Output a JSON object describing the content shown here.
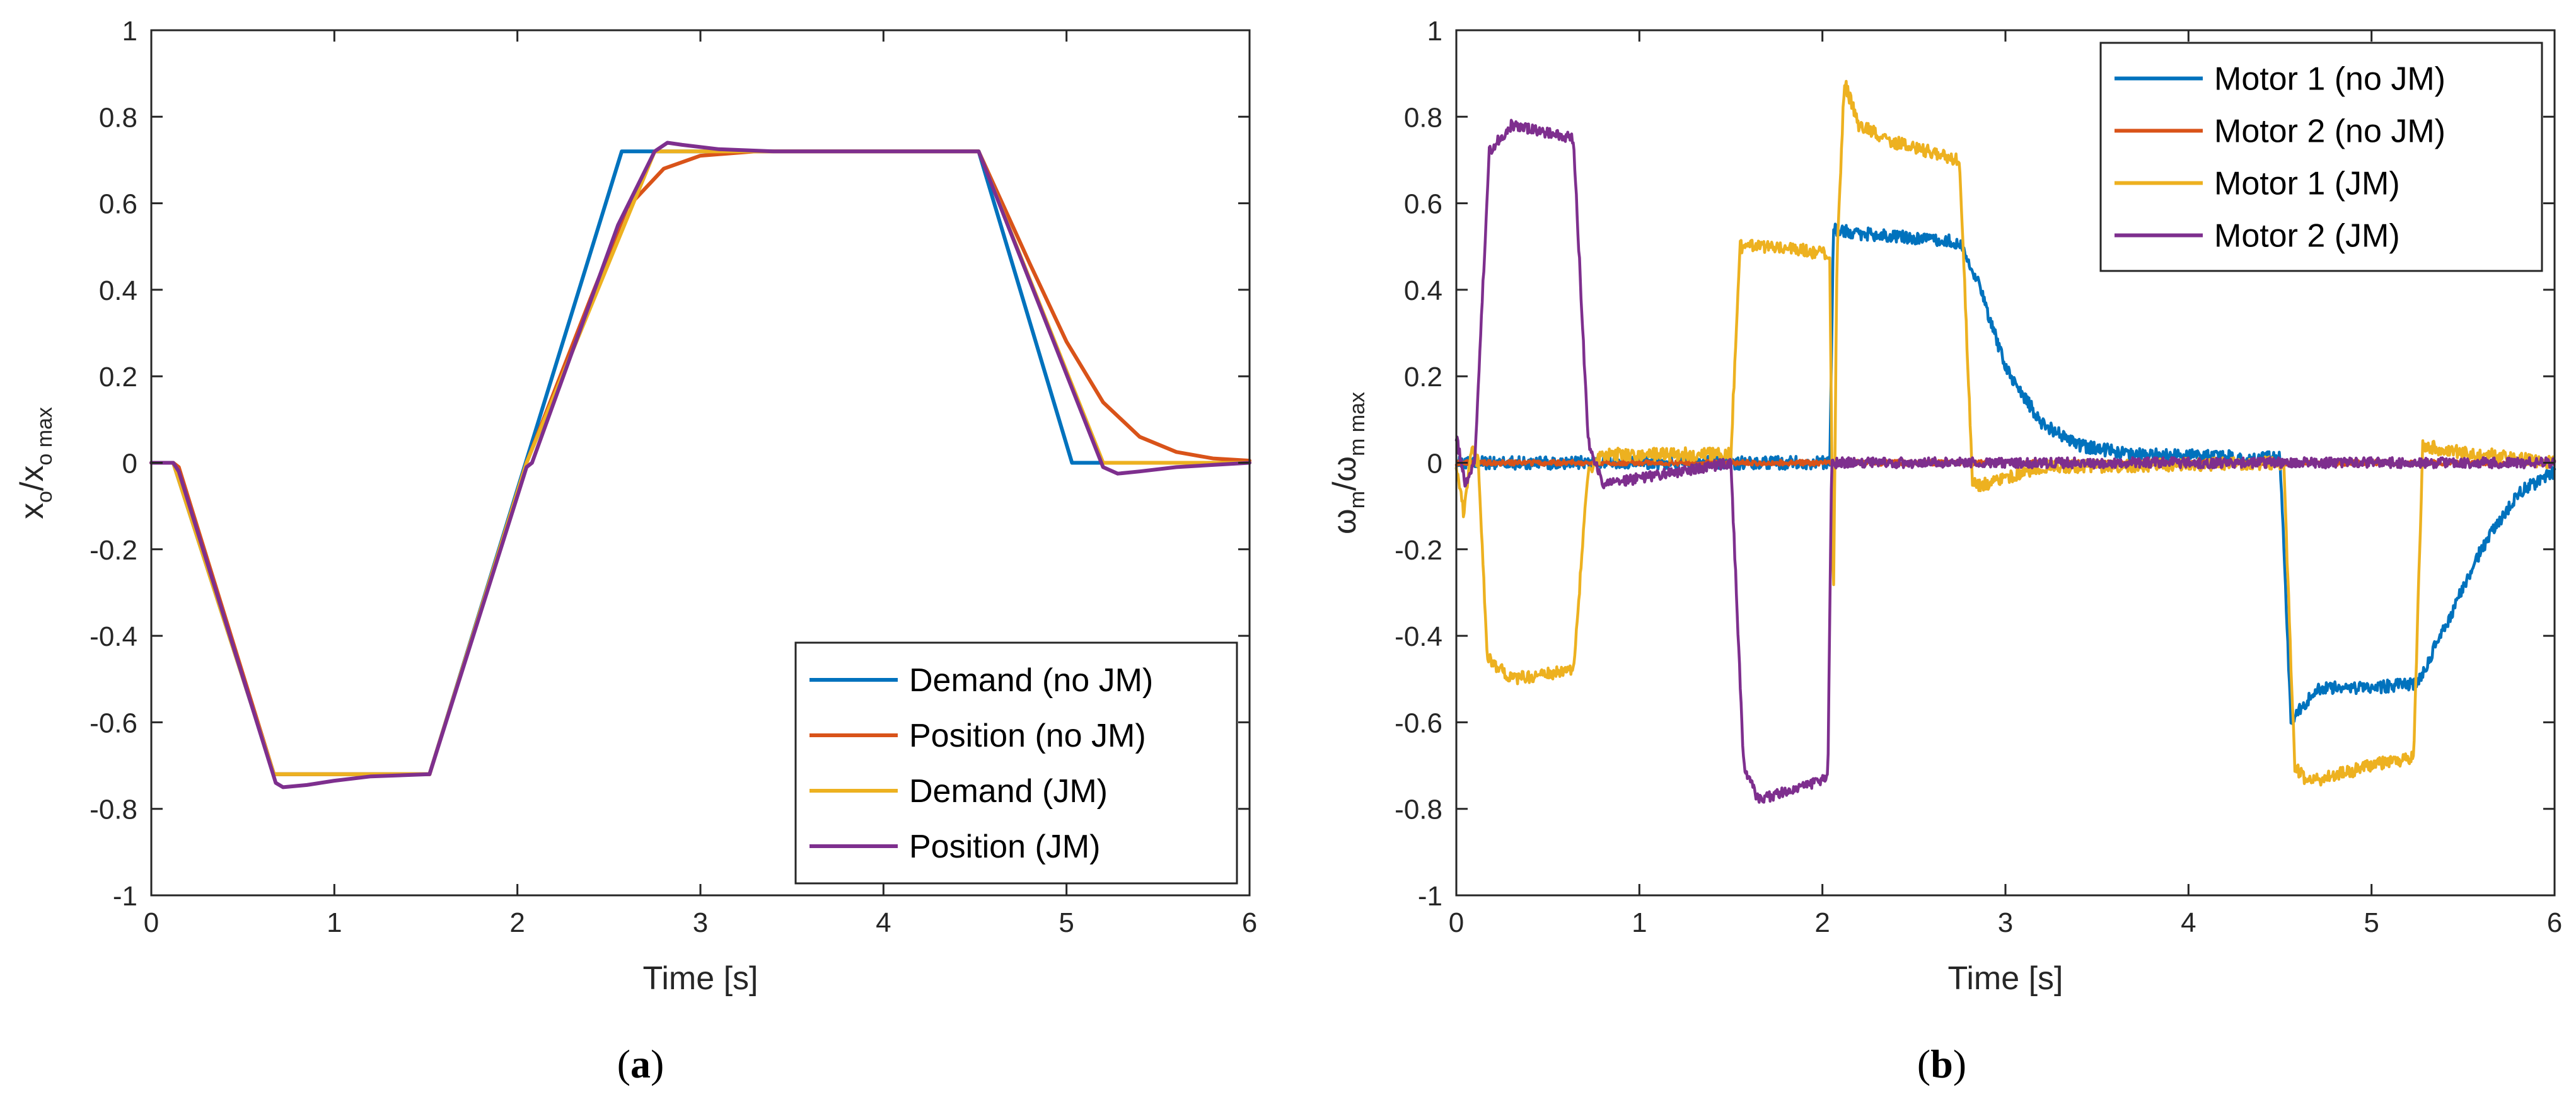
{
  "chart_data": [
    {
      "type": "line",
      "panel_label": "a",
      "title": "",
      "xlabel": "Time [s]",
      "ylabel_main": "x",
      "ylabel_sub1": "o",
      "ylabel_mid": "/x",
      "ylabel_sub2": "o max",
      "xlim": [
        0,
        6
      ],
      "ylim": [
        -1,
        1
      ],
      "xticks": [
        "0",
        "1",
        "2",
        "3",
        "4",
        "5",
        "6"
      ],
      "yticks": [
        "1",
        "0.8",
        "0.6",
        "0.4",
        "0.2",
        "0",
        "-0.2",
        "-0.4",
        "-0.6",
        "-0.8",
        "-1"
      ],
      "legend_position": "bottom-right",
      "series": [
        {
          "name": "Demand (no JM)",
          "color": "#0072BD",
          "points": [
            [
              0,
              0
            ],
            [
              0.12,
              0
            ],
            [
              0.67,
              -0.72
            ],
            [
              1.52,
              -0.72
            ],
            [
              2.57,
              0.72
            ],
            [
              4.52,
              0.72
            ],
            [
              5.03,
              0
            ],
            [
              6,
              0
            ]
          ]
        },
        {
          "name": "Position (no JM)",
          "color": "#D95319",
          "points": [
            [
              0,
              0
            ],
            [
              0.12,
              0
            ],
            [
              0.15,
              -0.01
            ],
            [
              0.67,
              -0.72
            ],
            [
              1.52,
              -0.72
            ],
            [
              2.05,
              0
            ],
            [
              2.4,
              0.38
            ],
            [
              2.6,
              0.59
            ],
            [
              2.8,
              0.68
            ],
            [
              3.0,
              0.71
            ],
            [
              3.3,
              0.72
            ],
            [
              4.52,
              0.72
            ],
            [
              4.8,
              0.46
            ],
            [
              5.0,
              0.28
            ],
            [
              5.2,
              0.14
            ],
            [
              5.4,
              0.06
            ],
            [
              5.6,
              0.025
            ],
            [
              5.8,
              0.01
            ],
            [
              6,
              0.005
            ]
          ]
        },
        {
          "name": "Demand (JM)",
          "color": "#EDB120",
          "points": [
            [
              0,
              0
            ],
            [
              0.12,
              0
            ],
            [
              0.67,
              -0.72
            ],
            [
              1.52,
              -0.72
            ],
            [
              2.05,
              0
            ],
            [
              2.75,
              0.72
            ],
            [
              4.52,
              0.72
            ],
            [
              5.2,
              0
            ],
            [
              6,
              0
            ]
          ]
        },
        {
          "name": "Position (JM)",
          "color": "#7E2F8E",
          "points": [
            [
              0,
              0
            ],
            [
              0.12,
              0
            ],
            [
              0.15,
              -0.02
            ],
            [
              0.68,
              -0.74
            ],
            [
              0.72,
              -0.75
            ],
            [
              0.85,
              -0.745
            ],
            [
              1.0,
              -0.735
            ],
            [
              1.2,
              -0.725
            ],
            [
              1.52,
              -0.72
            ],
            [
              2.05,
              -0.01
            ],
            [
              2.08,
              0
            ],
            [
              2.55,
              0.55
            ],
            [
              2.75,
              0.72
            ],
            [
              2.82,
              0.74
            ],
            [
              2.9,
              0.735
            ],
            [
              3.1,
              0.725
            ],
            [
              3.4,
              0.72
            ],
            [
              4.52,
              0.72
            ],
            [
              5.2,
              -0.01
            ],
            [
              5.28,
              -0.025
            ],
            [
              5.4,
              -0.02
            ],
            [
              5.6,
              -0.01
            ],
            [
              5.8,
              -0.005
            ],
            [
              6,
              0
            ]
          ]
        }
      ]
    },
    {
      "type": "line",
      "panel_label": "b",
      "title": "",
      "xlabel": "Time [s]",
      "ylabel_main": "ω",
      "ylabel_sub1": "m",
      "ylabel_mid": "/ω",
      "ylabel_sub2": "m max",
      "xlim": [
        0,
        6
      ],
      "ylim": [
        -1,
        1
      ],
      "xticks": [
        "0",
        "1",
        "2",
        "3",
        "4",
        "5",
        "6"
      ],
      "yticks": [
        "1",
        "0.8",
        "0.6",
        "0.4",
        "0.2",
        "0",
        "-0.2",
        "-0.4",
        "-0.6",
        "-0.8",
        "-1"
      ],
      "legend_position": "top-right",
      "series": [
        {
          "name": "Motor 1 (no JM)",
          "color": "#0072BD",
          "points": [
            [
              0,
              0
            ],
            [
              2.04,
              0
            ],
            [
              2.06,
              0.54
            ],
            [
              2.2,
              0.53
            ],
            [
              2.5,
              0.52
            ],
            [
              2.75,
              0.51
            ],
            [
              2.85,
              0.42
            ],
            [
              3.0,
              0.22
            ],
            [
              3.2,
              0.09
            ],
            [
              3.4,
              0.04
            ],
            [
              3.7,
              0.02
            ],
            [
              4.5,
              0.01
            ],
            [
              4.56,
              -0.6
            ],
            [
              4.7,
              -0.52
            ],
            [
              5.0,
              -0.52
            ],
            [
              5.25,
              -0.51
            ],
            [
              5.4,
              -0.38
            ],
            [
              5.6,
              -0.2
            ],
            [
              5.8,
              -0.07
            ],
            [
              6,
              -0.02
            ]
          ],
          "noise": 0.015
        },
        {
          "name": "Motor 2 (no JM)",
          "color": "#D95319",
          "points": [
            [
              0,
              0
            ],
            [
              6,
              0
            ]
          ],
          "noise": 0.006
        },
        {
          "name": "Motor 1 (JM)",
          "color": "#EDB120",
          "points": [
            [
              0,
              0
            ],
            [
              0.04,
              -0.12
            ],
            [
              0.08,
              0.03
            ],
            [
              0.12,
              0
            ],
            [
              0.17,
              -0.45
            ],
            [
              0.3,
              -0.5
            ],
            [
              0.64,
              -0.48
            ],
            [
              0.72,
              -0.02
            ],
            [
              0.8,
              0.02
            ],
            [
              1.5,
              0.02
            ],
            [
              1.55,
              0.5
            ],
            [
              1.8,
              0.5
            ],
            [
              2.04,
              0.48
            ],
            [
              2.06,
              -0.33
            ],
            [
              2.08,
              0.48
            ],
            [
              2.12,
              0.88
            ],
            [
              2.2,
              0.78
            ],
            [
              2.4,
              0.74
            ],
            [
              2.75,
              0.7
            ],
            [
              2.82,
              -0.05
            ],
            [
              2.9,
              -0.05
            ],
            [
              3.2,
              -0.01
            ],
            [
              4.52,
              0
            ],
            [
              4.58,
              -0.7
            ],
            [
              4.65,
              -0.74
            ],
            [
              5.0,
              -0.7
            ],
            [
              5.23,
              -0.68
            ],
            [
              5.28,
              0.04
            ],
            [
              5.4,
              0.03
            ],
            [
              6,
              0
            ]
          ],
          "noise": 0.015
        },
        {
          "name": "Motor 2 (JM)",
          "color": "#7E2F8E",
          "points": [
            [
              0,
              0.06
            ],
            [
              0.05,
              -0.05
            ],
            [
              0.1,
              0
            ],
            [
              0.18,
              0.72
            ],
            [
              0.3,
              0.78
            ],
            [
              0.64,
              0.75
            ],
            [
              0.72,
              0.05
            ],
            [
              0.8,
              -0.05
            ],
            [
              1.5,
              0
            ],
            [
              1.57,
              -0.7
            ],
            [
              1.65,
              -0.78
            ],
            [
              1.8,
              -0.76
            ],
            [
              2.03,
              -0.73
            ],
            [
              2.05,
              0
            ],
            [
              6,
              0
            ]
          ],
          "noise": 0.012
        }
      ]
    }
  ]
}
